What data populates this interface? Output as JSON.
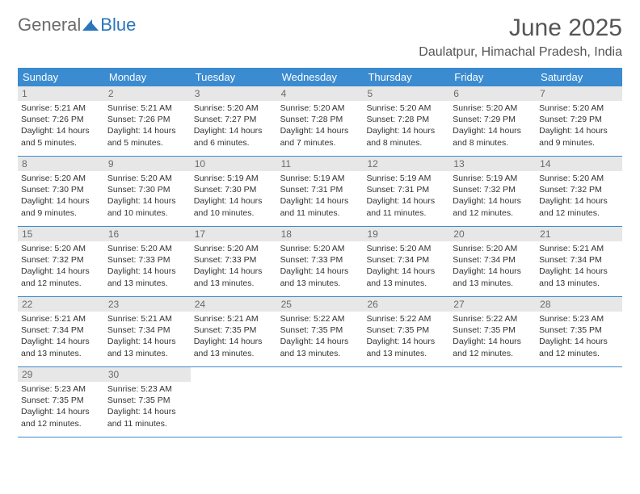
{
  "brand": {
    "general": "General",
    "blue": "Blue"
  },
  "colors": {
    "header_bg": "#3b8bd0",
    "header_text": "#ffffff",
    "daynum_bg": "#e7e7e7",
    "daynum_text": "#6a6a6a",
    "rule": "#3b8bd0",
    "body_text": "#333333",
    "logo_gray": "#6b6b6b",
    "logo_blue": "#2a75bb"
  },
  "title": "June 2025",
  "location": "Daulatpur, Himachal Pradesh, India",
  "weekdays": [
    "Sunday",
    "Monday",
    "Tuesday",
    "Wednesday",
    "Thursday",
    "Friday",
    "Saturday"
  ],
  "weeks": [
    [
      {
        "num": "1",
        "sunrise": "Sunrise: 5:21 AM",
        "sunset": "Sunset: 7:26 PM",
        "daylight": "Daylight: 14 hours and 5 minutes."
      },
      {
        "num": "2",
        "sunrise": "Sunrise: 5:21 AM",
        "sunset": "Sunset: 7:26 PM",
        "daylight": "Daylight: 14 hours and 5 minutes."
      },
      {
        "num": "3",
        "sunrise": "Sunrise: 5:20 AM",
        "sunset": "Sunset: 7:27 PM",
        "daylight": "Daylight: 14 hours and 6 minutes."
      },
      {
        "num": "4",
        "sunrise": "Sunrise: 5:20 AM",
        "sunset": "Sunset: 7:28 PM",
        "daylight": "Daylight: 14 hours and 7 minutes."
      },
      {
        "num": "5",
        "sunrise": "Sunrise: 5:20 AM",
        "sunset": "Sunset: 7:28 PM",
        "daylight": "Daylight: 14 hours and 8 minutes."
      },
      {
        "num": "6",
        "sunrise": "Sunrise: 5:20 AM",
        "sunset": "Sunset: 7:29 PM",
        "daylight": "Daylight: 14 hours and 8 minutes."
      },
      {
        "num": "7",
        "sunrise": "Sunrise: 5:20 AM",
        "sunset": "Sunset: 7:29 PM",
        "daylight": "Daylight: 14 hours and 9 minutes."
      }
    ],
    [
      {
        "num": "8",
        "sunrise": "Sunrise: 5:20 AM",
        "sunset": "Sunset: 7:30 PM",
        "daylight": "Daylight: 14 hours and 9 minutes."
      },
      {
        "num": "9",
        "sunrise": "Sunrise: 5:20 AM",
        "sunset": "Sunset: 7:30 PM",
        "daylight": "Daylight: 14 hours and 10 minutes."
      },
      {
        "num": "10",
        "sunrise": "Sunrise: 5:19 AM",
        "sunset": "Sunset: 7:30 PM",
        "daylight": "Daylight: 14 hours and 10 minutes."
      },
      {
        "num": "11",
        "sunrise": "Sunrise: 5:19 AM",
        "sunset": "Sunset: 7:31 PM",
        "daylight": "Daylight: 14 hours and 11 minutes."
      },
      {
        "num": "12",
        "sunrise": "Sunrise: 5:19 AM",
        "sunset": "Sunset: 7:31 PM",
        "daylight": "Daylight: 14 hours and 11 minutes."
      },
      {
        "num": "13",
        "sunrise": "Sunrise: 5:19 AM",
        "sunset": "Sunset: 7:32 PM",
        "daylight": "Daylight: 14 hours and 12 minutes."
      },
      {
        "num": "14",
        "sunrise": "Sunrise: 5:20 AM",
        "sunset": "Sunset: 7:32 PM",
        "daylight": "Daylight: 14 hours and 12 minutes."
      }
    ],
    [
      {
        "num": "15",
        "sunrise": "Sunrise: 5:20 AM",
        "sunset": "Sunset: 7:32 PM",
        "daylight": "Daylight: 14 hours and 12 minutes."
      },
      {
        "num": "16",
        "sunrise": "Sunrise: 5:20 AM",
        "sunset": "Sunset: 7:33 PM",
        "daylight": "Daylight: 14 hours and 13 minutes."
      },
      {
        "num": "17",
        "sunrise": "Sunrise: 5:20 AM",
        "sunset": "Sunset: 7:33 PM",
        "daylight": "Daylight: 14 hours and 13 minutes."
      },
      {
        "num": "18",
        "sunrise": "Sunrise: 5:20 AM",
        "sunset": "Sunset: 7:33 PM",
        "daylight": "Daylight: 14 hours and 13 minutes."
      },
      {
        "num": "19",
        "sunrise": "Sunrise: 5:20 AM",
        "sunset": "Sunset: 7:34 PM",
        "daylight": "Daylight: 14 hours and 13 minutes."
      },
      {
        "num": "20",
        "sunrise": "Sunrise: 5:20 AM",
        "sunset": "Sunset: 7:34 PM",
        "daylight": "Daylight: 14 hours and 13 minutes."
      },
      {
        "num": "21",
        "sunrise": "Sunrise: 5:21 AM",
        "sunset": "Sunset: 7:34 PM",
        "daylight": "Daylight: 14 hours and 13 minutes."
      }
    ],
    [
      {
        "num": "22",
        "sunrise": "Sunrise: 5:21 AM",
        "sunset": "Sunset: 7:34 PM",
        "daylight": "Daylight: 14 hours and 13 minutes."
      },
      {
        "num": "23",
        "sunrise": "Sunrise: 5:21 AM",
        "sunset": "Sunset: 7:34 PM",
        "daylight": "Daylight: 14 hours and 13 minutes."
      },
      {
        "num": "24",
        "sunrise": "Sunrise: 5:21 AM",
        "sunset": "Sunset: 7:35 PM",
        "daylight": "Daylight: 14 hours and 13 minutes."
      },
      {
        "num": "25",
        "sunrise": "Sunrise: 5:22 AM",
        "sunset": "Sunset: 7:35 PM",
        "daylight": "Daylight: 14 hours and 13 minutes."
      },
      {
        "num": "26",
        "sunrise": "Sunrise: 5:22 AM",
        "sunset": "Sunset: 7:35 PM",
        "daylight": "Daylight: 14 hours and 13 minutes."
      },
      {
        "num": "27",
        "sunrise": "Sunrise: 5:22 AM",
        "sunset": "Sunset: 7:35 PM",
        "daylight": "Daylight: 14 hours and 12 minutes."
      },
      {
        "num": "28",
        "sunrise": "Sunrise: 5:23 AM",
        "sunset": "Sunset: 7:35 PM",
        "daylight": "Daylight: 14 hours and 12 minutes."
      }
    ],
    [
      {
        "num": "29",
        "sunrise": "Sunrise: 5:23 AM",
        "sunset": "Sunset: 7:35 PM",
        "daylight": "Daylight: 14 hours and 12 minutes."
      },
      {
        "num": "30",
        "sunrise": "Sunrise: 5:23 AM",
        "sunset": "Sunset: 7:35 PM",
        "daylight": "Daylight: 14 hours and 11 minutes."
      },
      {
        "empty": true
      },
      {
        "empty": true
      },
      {
        "empty": true
      },
      {
        "empty": true
      },
      {
        "empty": true
      }
    ]
  ]
}
